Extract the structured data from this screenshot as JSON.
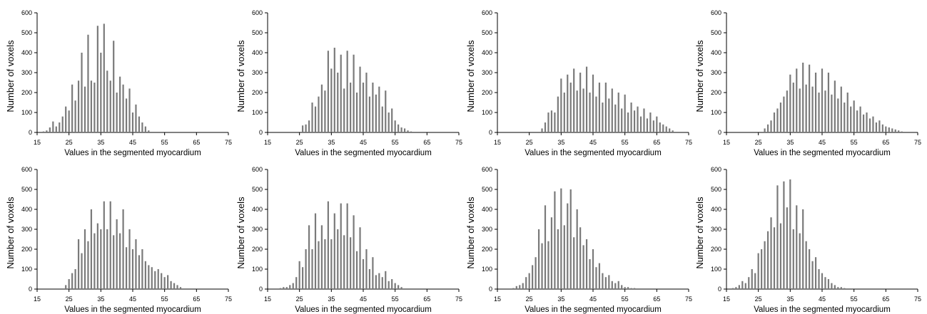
{
  "chart_data": [
    {
      "type": "bar",
      "xlabel": "Values in the segmented myocardium",
      "ylabel": "Number of voxels",
      "xlim": [
        15,
        75
      ],
      "ylim": [
        0,
        600
      ],
      "xticks": [
        15,
        25,
        35,
        45,
        55,
        65,
        75
      ],
      "yticks": [
        0,
        100,
        200,
        300,
        400,
        500,
        600
      ],
      "x": [
        17,
        18,
        19,
        20,
        21,
        22,
        23,
        24,
        25,
        26,
        27,
        28,
        29,
        30,
        31,
        32,
        33,
        34,
        35,
        36,
        37,
        38,
        39,
        40,
        41,
        42,
        43,
        44,
        45,
        46,
        47,
        48,
        49,
        50
      ],
      "values": [
        5,
        10,
        25,
        55,
        30,
        50,
        80,
        130,
        110,
        240,
        160,
        260,
        400,
        230,
        490,
        260,
        250,
        535,
        400,
        545,
        310,
        260,
        460,
        200,
        280,
        240,
        170,
        220,
        100,
        140,
        80,
        50,
        30,
        10
      ]
    },
    {
      "type": "bar",
      "xlabel": "Values in the segmented myocardium",
      "ylabel": "Number of voxels",
      "xlim": [
        15,
        75
      ],
      "ylim": [
        0,
        600
      ],
      "xticks": [
        15,
        25,
        35,
        45,
        55,
        65,
        75
      ],
      "yticks": [
        0,
        100,
        200,
        300,
        400,
        500,
        600
      ],
      "x": [
        26,
        27,
        28,
        29,
        30,
        31,
        32,
        33,
        34,
        35,
        36,
        37,
        38,
        39,
        40,
        41,
        42,
        43,
        44,
        45,
        46,
        47,
        48,
        49,
        50,
        51,
        52,
        53,
        54,
        55,
        56,
        57,
        58,
        59,
        60
      ],
      "values": [
        35,
        40,
        60,
        150,
        130,
        180,
        240,
        210,
        410,
        320,
        425,
        300,
        390,
        220,
        410,
        250,
        390,
        200,
        330,
        250,
        300,
        180,
        250,
        190,
        230,
        130,
        210,
        100,
        120,
        60,
        40,
        25,
        20,
        10,
        5
      ]
    },
    {
      "type": "bar",
      "xlabel": "Values in the segmented myocardium",
      "ylabel": "Number of voxels",
      "xlim": [
        15,
        75
      ],
      "ylim": [
        0,
        600
      ],
      "xticks": [
        15,
        25,
        35,
        45,
        55,
        65,
        75
      ],
      "yticks": [
        0,
        100,
        200,
        300,
        400,
        500,
        600
      ],
      "x": [
        29,
        30,
        31,
        32,
        33,
        34,
        35,
        36,
        37,
        38,
        39,
        40,
        41,
        42,
        43,
        44,
        45,
        46,
        47,
        48,
        49,
        50,
        51,
        52,
        53,
        54,
        55,
        56,
        57,
        58,
        59,
        60,
        61,
        62,
        63,
        64,
        65,
        66,
        67,
        68,
        69,
        70
      ],
      "values": [
        20,
        50,
        100,
        110,
        100,
        180,
        270,
        200,
        290,
        250,
        320,
        210,
        300,
        220,
        330,
        200,
        290,
        180,
        250,
        150,
        250,
        170,
        220,
        140,
        200,
        120,
        190,
        100,
        150,
        110,
        130,
        80,
        120,
        70,
        100,
        60,
        80,
        50,
        40,
        30,
        20,
        10
      ]
    },
    {
      "type": "bar",
      "xlabel": "Values in the segmented myocardium",
      "ylabel": "Number of voxels",
      "xlim": [
        15,
        75
      ],
      "ylim": [
        0,
        600
      ],
      "xticks": [
        15,
        25,
        35,
        45,
        55,
        65,
        75
      ],
      "yticks": [
        0,
        100,
        200,
        300,
        400,
        500,
        600
      ],
      "x": [
        27,
        28,
        29,
        30,
        31,
        32,
        33,
        34,
        35,
        36,
        37,
        38,
        39,
        40,
        41,
        42,
        43,
        44,
        45,
        46,
        47,
        48,
        49,
        50,
        51,
        52,
        53,
        54,
        55,
        56,
        57,
        58,
        59,
        60,
        61,
        62,
        63,
        64,
        65,
        66,
        67,
        68,
        69,
        70
      ],
      "values": [
        20,
        40,
        60,
        100,
        120,
        150,
        180,
        210,
        290,
        250,
        320,
        220,
        350,
        240,
        340,
        230,
        300,
        200,
        320,
        210,
        300,
        190,
        260,
        170,
        230,
        150,
        200,
        130,
        160,
        110,
        130,
        90,
        100,
        70,
        80,
        50,
        60,
        40,
        30,
        25,
        20,
        15,
        10,
        5
      ]
    },
    {
      "type": "bar",
      "xlabel": "Values in the segmented myocardium",
      "ylabel": "Number of voxels",
      "xlim": [
        15,
        75
      ],
      "ylim": [
        0,
        600
      ],
      "xticks": [
        15,
        25,
        35,
        45,
        55,
        65,
        75
      ],
      "yticks": [
        0,
        100,
        200,
        300,
        400,
        500,
        600
      ],
      "x": [
        24,
        25,
        26,
        27,
        28,
        29,
        30,
        31,
        32,
        33,
        34,
        35,
        36,
        37,
        38,
        39,
        40,
        41,
        42,
        43,
        44,
        45,
        46,
        47,
        48,
        49,
        50,
        51,
        52,
        53,
        54,
        55,
        56,
        57,
        58,
        59,
        60
      ],
      "values": [
        20,
        50,
        80,
        100,
        250,
        180,
        300,
        240,
        400,
        280,
        330,
        300,
        440,
        300,
        440,
        270,
        350,
        280,
        400,
        210,
        300,
        200,
        250,
        170,
        200,
        140,
        120,
        110,
        90,
        100,
        80,
        60,
        70,
        40,
        30,
        20,
        10
      ]
    },
    {
      "type": "bar",
      "xlabel": "Values in the segmented myocardium",
      "ylabel": "Number of voxels",
      "xlim": [
        15,
        75
      ],
      "ylim": [
        0,
        600
      ],
      "xticks": [
        15,
        25,
        35,
        45,
        55,
        65,
        75
      ],
      "yticks": [
        0,
        100,
        200,
        300,
        400,
        500,
        600
      ],
      "x": [
        19,
        20,
        21,
        22,
        23,
        24,
        25,
        26,
        27,
        28,
        29,
        30,
        31,
        32,
        33,
        34,
        35,
        36,
        37,
        38,
        39,
        40,
        41,
        42,
        43,
        44,
        45,
        46,
        47,
        48,
        49,
        50,
        51,
        52,
        53,
        54,
        55,
        56,
        57
      ],
      "values": [
        5,
        10,
        10,
        20,
        30,
        60,
        140,
        110,
        200,
        320,
        200,
        380,
        240,
        320,
        250,
        440,
        250,
        380,
        300,
        430,
        270,
        430,
        260,
        370,
        190,
        310,
        150,
        200,
        100,
        160,
        70,
        80,
        60,
        90,
        40,
        50,
        30,
        20,
        10
      ]
    },
    {
      "type": "bar",
      "xlabel": "Values in the segmented myocardium",
      "ylabel": "Number of voxels",
      "xlim": [
        15,
        75
      ],
      "ylim": [
        0,
        600
      ],
      "xticks": [
        15,
        25,
        35,
        45,
        55,
        65,
        75
      ],
      "yticks": [
        0,
        100,
        200,
        300,
        400,
        500,
        600
      ],
      "x": [
        20,
        21,
        22,
        23,
        24,
        25,
        26,
        27,
        28,
        29,
        30,
        31,
        32,
        33,
        34,
        35,
        36,
        37,
        38,
        39,
        40,
        41,
        42,
        43,
        44,
        45,
        46,
        47,
        48,
        49,
        50,
        51,
        52,
        53,
        54,
        55,
        56,
        57,
        58
      ],
      "values": [
        5,
        15,
        20,
        30,
        60,
        80,
        120,
        160,
        300,
        230,
        420,
        240,
        360,
        490,
        300,
        505,
        320,
        430,
        500,
        260,
        400,
        310,
        220,
        250,
        150,
        200,
        110,
        130,
        80,
        60,
        70,
        40,
        30,
        40,
        20,
        10,
        10,
        5,
        5
      ]
    },
    {
      "type": "bar",
      "xlabel": "Values in the segmented myocardium",
      "ylabel": "Number of voxels",
      "xlim": [
        15,
        75
      ],
      "ylim": [
        0,
        600
      ],
      "xticks": [
        15,
        25,
        35,
        45,
        55,
        65,
        75
      ],
      "yticks": [
        0,
        100,
        200,
        300,
        400,
        500,
        600
      ],
      "x": [
        17,
        18,
        19,
        20,
        21,
        22,
        23,
        24,
        25,
        26,
        27,
        28,
        29,
        30,
        31,
        32,
        33,
        34,
        35,
        36,
        37,
        38,
        39,
        40,
        41,
        42,
        43,
        44,
        45,
        46,
        47,
        48,
        49,
        50,
        51,
        52
      ],
      "values": [
        5,
        10,
        20,
        40,
        30,
        60,
        100,
        80,
        180,
        200,
        240,
        290,
        360,
        310,
        520,
        330,
        540,
        410,
        550,
        300,
        420,
        280,
        400,
        240,
        200,
        140,
        160,
        100,
        80,
        60,
        50,
        30,
        20,
        10,
        10,
        5
      ]
    }
  ]
}
